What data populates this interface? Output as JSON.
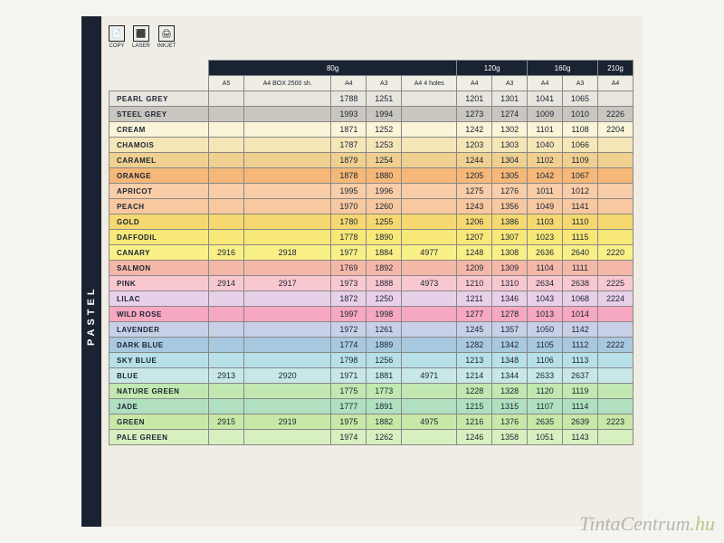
{
  "sidebar_label": "PASTEL",
  "icons": [
    {
      "name": "copy-icon",
      "label": "COPY",
      "glyph": "📄"
    },
    {
      "name": "laser-icon",
      "label": "LASER",
      "glyph": "⬛"
    },
    {
      "name": "inkjet-icon",
      "label": "INKJET",
      "glyph": "🖨"
    }
  ],
  "weight_groups": [
    {
      "label": "80g",
      "span": 5
    },
    {
      "label": "120g",
      "span": 2
    },
    {
      "label": "160g",
      "span": 2
    },
    {
      "label": "210g",
      "span": 1
    }
  ],
  "subheaders": [
    "A5",
    "A4 BOX\n2500 sh.",
    "A4",
    "A3",
    "A4\n4 holes",
    "A4",
    "A3",
    "A4",
    "A3",
    "A4"
  ],
  "rows": [
    {
      "name": "PEARL GREY",
      "color": "#e8e5de",
      "c": [
        "",
        "",
        "1788",
        "1251",
        "",
        "1201",
        "1301",
        "1041",
        "1065",
        ""
      ]
    },
    {
      "name": "STEEL GREY",
      "color": "#c9c6bf",
      "c": [
        "",
        "",
        "1993",
        "1994",
        "",
        "1273",
        "1274",
        "1009",
        "1010",
        "2226"
      ]
    },
    {
      "name": "CREAM",
      "color": "#faf4d8",
      "c": [
        "",
        "",
        "1871",
        "1252",
        "",
        "1242",
        "1302",
        "1101",
        "1108",
        "2204"
      ]
    },
    {
      "name": "CHAMOIS",
      "color": "#f5e6b8",
      "c": [
        "",
        "",
        "1787",
        "1253",
        "",
        "1203",
        "1303",
        "1040",
        "1066",
        ""
      ]
    },
    {
      "name": "CARAMEL",
      "color": "#f0d090",
      "c": [
        "",
        "",
        "1879",
        "1254",
        "",
        "1244",
        "1304",
        "1102",
        "1109",
        ""
      ]
    },
    {
      "name": "ORANGE",
      "color": "#f5b878",
      "c": [
        "",
        "",
        "1878",
        "1880",
        "",
        "1205",
        "1305",
        "1042",
        "1067",
        ""
      ]
    },
    {
      "name": "APRICOT",
      "color": "#f8cda8",
      "c": [
        "",
        "",
        "1995",
        "1996",
        "",
        "1275",
        "1276",
        "1011",
        "1012",
        ""
      ]
    },
    {
      "name": "PEACH",
      "color": "#f8c8a0",
      "c": [
        "",
        "",
        "1970",
        "1260",
        "",
        "1243",
        "1356",
        "1049",
        "1141",
        ""
      ]
    },
    {
      "name": "GOLD",
      "color": "#f5d870",
      "c": [
        "",
        "",
        "1780",
        "1255",
        "",
        "1206",
        "1386",
        "1103",
        "1110",
        ""
      ]
    },
    {
      "name": "DAFFODIL",
      "color": "#f8e878",
      "c": [
        "",
        "",
        "1778",
        "1890",
        "",
        "1207",
        "1307",
        "1023",
        "1115",
        ""
      ]
    },
    {
      "name": "CANARY",
      "color": "#faf088",
      "c": [
        "2916",
        "2918",
        "1977",
        "1884",
        "4977",
        "1248",
        "1308",
        "2636",
        "2640",
        "2220"
      ]
    },
    {
      "name": "SALMON",
      "color": "#f5b8a8",
      "c": [
        "",
        "",
        "1769",
        "1892",
        "",
        "1209",
        "1309",
        "1104",
        "1111",
        ""
      ]
    },
    {
      "name": "PINK",
      "color": "#f8c8d0",
      "c": [
        "2914",
        "2917",
        "1973",
        "1888",
        "4973",
        "1210",
        "1310",
        "2634",
        "2638",
        "2225"
      ]
    },
    {
      "name": "LILAC",
      "color": "#e8d0e8",
      "c": [
        "",
        "",
        "1872",
        "1250",
        "",
        "1211",
        "1346",
        "1043",
        "1068",
        "2224"
      ]
    },
    {
      "name": "WILD ROSE",
      "color": "#f5a8c0",
      "c": [
        "",
        "",
        "1997",
        "1998",
        "",
        "1277",
        "1278",
        "1013",
        "1014",
        ""
      ]
    },
    {
      "name": "LAVENDER",
      "color": "#c8d0e8",
      "c": [
        "",
        "",
        "1972",
        "1261",
        "",
        "1245",
        "1357",
        "1050",
        "1142",
        ""
      ]
    },
    {
      "name": "DARK BLUE",
      "color": "#a8c8e0",
      "c": [
        "",
        "",
        "1774",
        "1889",
        "",
        "1282",
        "1342",
        "1105",
        "1112",
        "2222"
      ]
    },
    {
      "name": "SKY BLUE",
      "color": "#b8e0e8",
      "c": [
        "",
        "",
        "1798",
        "1256",
        "",
        "1213",
        "1348",
        "1106",
        "1113",
        ""
      ]
    },
    {
      "name": "BLUE",
      "color": "#c8e8e8",
      "c": [
        "2913",
        "2920",
        "1971",
        "1881",
        "4971",
        "1214",
        "1344",
        "2633",
        "2637",
        ""
      ]
    },
    {
      "name": "NATURE GREEN",
      "color": "#c0e8b0",
      "c": [
        "",
        "",
        "1775",
        "1773",
        "",
        "1228",
        "1328",
        "1120",
        "1119",
        ""
      ]
    },
    {
      "name": "JADE",
      "color": "#b0e0c0",
      "c": [
        "",
        "",
        "1777",
        "1891",
        "",
        "1215",
        "1315",
        "1107",
        "1114",
        ""
      ]
    },
    {
      "name": "GREEN",
      "color": "#c8e8a8",
      "c": [
        "2915",
        "2919",
        "1975",
        "1882",
        "4975",
        "1216",
        "1376",
        "2635",
        "2639",
        "2223"
      ]
    },
    {
      "name": "PALE GREEN",
      "color": "#d8f0c0",
      "c": [
        "",
        "",
        "1974",
        "1262",
        "",
        "1246",
        "1358",
        "1051",
        "1143",
        ""
      ]
    }
  ],
  "watermark": {
    "main": "TintaCentrum",
    "suffix": ".hu"
  }
}
